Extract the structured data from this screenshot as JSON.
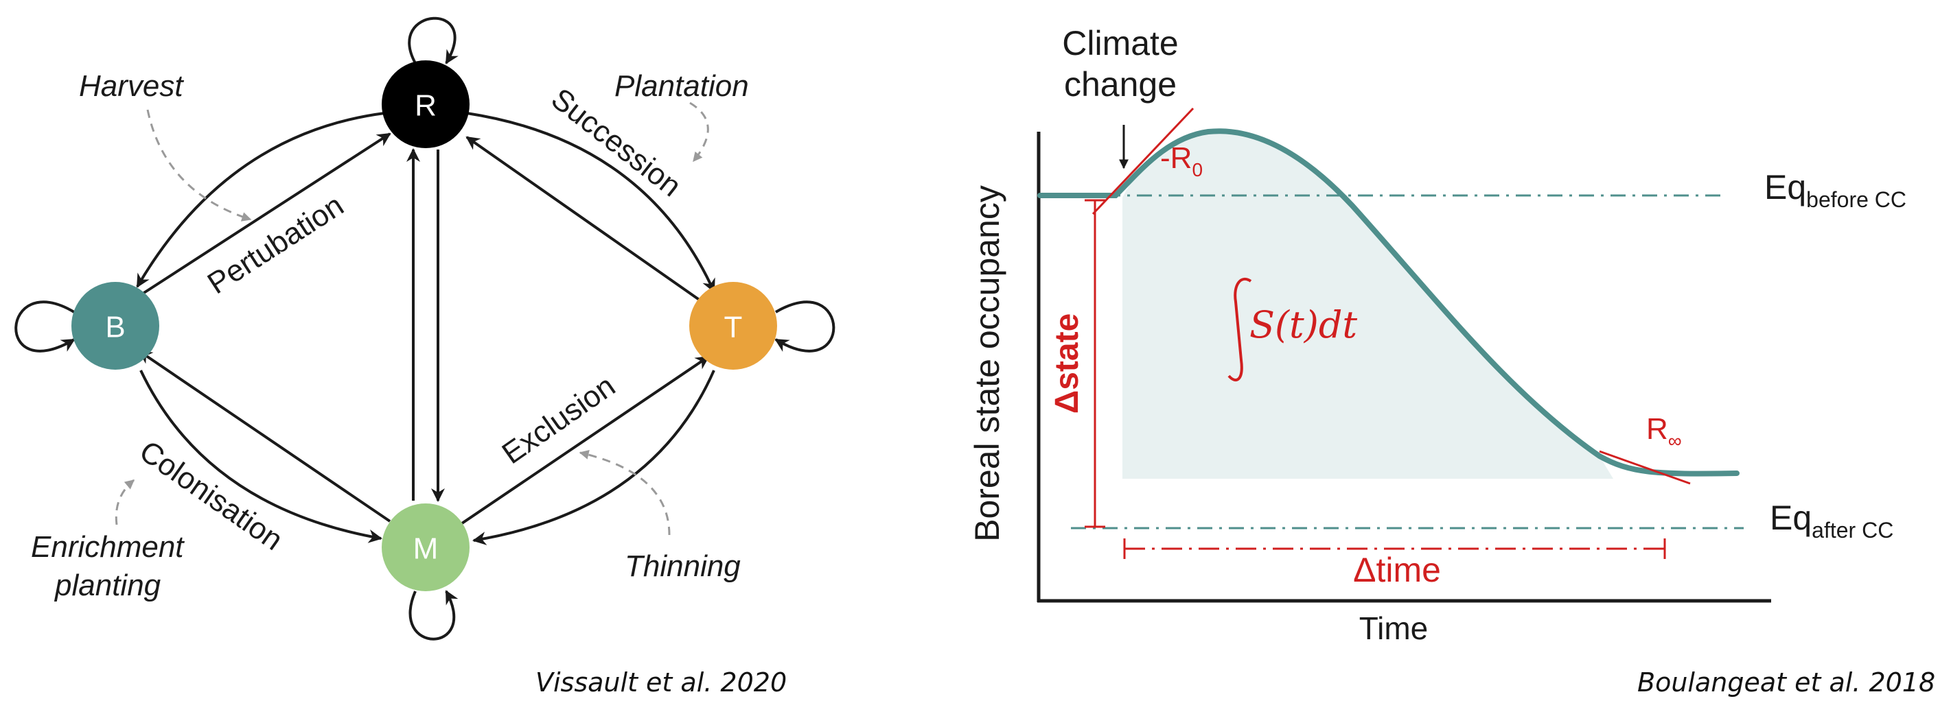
{
  "left_diagram": {
    "nodes": {
      "R": {
        "label": "R",
        "color": "#000000"
      },
      "B": {
        "label": "B",
        "color": "#4f8f8c"
      },
      "T": {
        "label": "T",
        "color": "#e9a23b"
      },
      "M": {
        "label": "M",
        "color": "#9ccc84"
      }
    },
    "transitions": {
      "pertubation": "Pertubation",
      "succession": "Succession",
      "exclusion": "Exclusion",
      "colonisation": "Colonisation"
    },
    "interventions": {
      "harvest": "Harvest",
      "plantation": "Plantation",
      "thinning": "Thinning",
      "enrichment_line1": "Enrichment",
      "enrichment_line2": "planting"
    },
    "citation": "Vissault et al. 2020"
  },
  "right_diagram": {
    "event_line1": "Climate",
    "event_line2": "change",
    "ylabel": "Boreal state occupancy",
    "xlabel": "Time",
    "eq_before_main": "Eq",
    "eq_before_sub": "before CC",
    "eq_after_main": "Eq",
    "eq_after_sub": "after CC",
    "r0_prefix": "-R",
    "r0_sub": "0",
    "rinf_main": "R",
    "rinf_sub": "∞",
    "integral": "S(t)dt",
    "delta_state": "Δstate",
    "delta_time": "Δtime",
    "curve_color": "#4f8f8c",
    "annotation_color": "#d11f1f",
    "citation": "Boulangeat et al. 2018"
  }
}
